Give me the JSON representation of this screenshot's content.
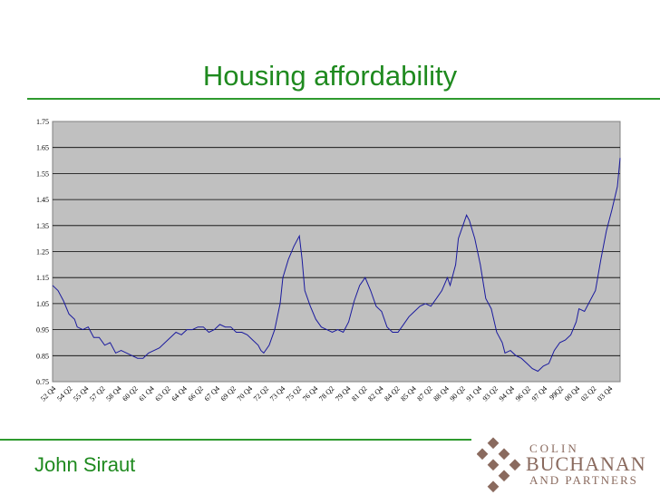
{
  "slide": {
    "title": "Housing affordability",
    "author": "John Siraut",
    "logo": {
      "line1": "COLIN",
      "line2": "BUCHANAN",
      "line3": "AND PARTNERS",
      "color": "#8a6a5e"
    },
    "accent_color": "#1f8a1f"
  },
  "chart_data": {
    "type": "line",
    "title": "",
    "xlabel": "",
    "ylabel": "",
    "ylim": [
      0.75,
      1.75
    ],
    "yticks": [
      0.75,
      0.85,
      0.95,
      1.05,
      1.15,
      1.25,
      1.35,
      1.45,
      1.55,
      1.65,
      1.75
    ],
    "ytick_labels": [
      "0.75",
      "0.85",
      "0.95",
      "1.05",
      "1.15",
      "1.25",
      "1.35",
      "1.45",
      "1.55",
      "1.65",
      "1.75"
    ],
    "grid": true,
    "legend": "none",
    "plot_background": "#c0c0c0",
    "line_color": "#1a1a9e",
    "xtick_labels": [
      "52 Q4",
      "54 Q2",
      "55 Q4",
      "57 Q2",
      "58 Q4",
      "60 Q2",
      "61 Q4",
      "63 Q2",
      "64 Q4",
      "66 Q2",
      "67 Q4",
      "69 Q2",
      "70 Q4",
      "72 Q2",
      "73 Q4",
      "75 Q2",
      "76 Q4",
      "78 Q2",
      "79 Q4",
      "81 Q2",
      "82 Q4",
      "84 Q2",
      "85 Q4",
      "87 Q2",
      "88 Q4",
      "90 Q2",
      "91 Q4",
      "93 Q2",
      "94 Q4",
      "96 Q2",
      "97 Q4",
      "99Q2",
      "00 Q4",
      "02 Q2",
      "03 Q4"
    ],
    "x_start": 1952.75,
    "x_end": 2004.5,
    "series": [
      {
        "points": [
          [
            1952.75,
            1.12
          ],
          [
            1953.25,
            1.1
          ],
          [
            1953.75,
            1.06
          ],
          [
            1954.25,
            1.01
          ],
          [
            1954.75,
            0.99
          ],
          [
            1955.0,
            0.96
          ],
          [
            1955.5,
            0.95
          ],
          [
            1956.0,
            0.96
          ],
          [
            1956.5,
            0.92
          ],
          [
            1957.0,
            0.92
          ],
          [
            1957.5,
            0.89
          ],
          [
            1958.0,
            0.9
          ],
          [
            1958.5,
            0.86
          ],
          [
            1959.0,
            0.87
          ],
          [
            1959.5,
            0.86
          ],
          [
            1960.0,
            0.85
          ],
          [
            1960.5,
            0.84
          ],
          [
            1961.0,
            0.84
          ],
          [
            1961.5,
            0.86
          ],
          [
            1962.0,
            0.87
          ],
          [
            1962.5,
            0.88
          ],
          [
            1963.0,
            0.9
          ],
          [
            1963.5,
            0.92
          ],
          [
            1964.0,
            0.94
          ],
          [
            1964.5,
            0.93
          ],
          [
            1965.0,
            0.95
          ],
          [
            1965.5,
            0.95
          ],
          [
            1966.0,
            0.96
          ],
          [
            1966.5,
            0.96
          ],
          [
            1967.0,
            0.94
          ],
          [
            1967.5,
            0.95
          ],
          [
            1968.0,
            0.97
          ],
          [
            1968.5,
            0.96
          ],
          [
            1969.0,
            0.96
          ],
          [
            1969.5,
            0.94
          ],
          [
            1970.0,
            0.94
          ],
          [
            1970.5,
            0.93
          ],
          [
            1971.0,
            0.91
          ],
          [
            1971.5,
            0.89
          ],
          [
            1971.75,
            0.87
          ],
          [
            1972.0,
            0.86
          ],
          [
            1972.5,
            0.89
          ],
          [
            1973.0,
            0.95
          ],
          [
            1973.5,
            1.05
          ],
          [
            1973.75,
            1.15
          ],
          [
            1974.25,
            1.22
          ],
          [
            1974.75,
            1.27
          ],
          [
            1975.25,
            1.31
          ],
          [
            1975.5,
            1.22
          ],
          [
            1975.75,
            1.1
          ],
          [
            1976.25,
            1.04
          ],
          [
            1976.75,
            0.99
          ],
          [
            1977.25,
            0.96
          ],
          [
            1977.75,
            0.95
          ],
          [
            1978.25,
            0.94
          ],
          [
            1978.75,
            0.95
          ],
          [
            1979.25,
            0.94
          ],
          [
            1979.75,
            0.98
          ],
          [
            1980.25,
            1.06
          ],
          [
            1980.75,
            1.12
          ],
          [
            1981.25,
            1.15
          ],
          [
            1981.75,
            1.1
          ],
          [
            1982.25,
            1.04
          ],
          [
            1982.75,
            1.02
          ],
          [
            1983.25,
            0.96
          ],
          [
            1983.75,
            0.94
          ],
          [
            1984.25,
            0.94
          ],
          [
            1984.75,
            0.97
          ],
          [
            1985.25,
            1.0
          ],
          [
            1985.75,
            1.02
          ],
          [
            1986.25,
            1.04
          ],
          [
            1986.75,
            1.05
          ],
          [
            1987.25,
            1.04
          ],
          [
            1987.75,
            1.07
          ],
          [
            1988.25,
            1.1
          ],
          [
            1988.75,
            1.15
          ],
          [
            1989.0,
            1.12
          ],
          [
            1989.5,
            1.2
          ],
          [
            1989.75,
            1.3
          ],
          [
            1990.25,
            1.36
          ],
          [
            1990.5,
            1.39
          ],
          [
            1990.75,
            1.37
          ],
          [
            1991.25,
            1.3
          ],
          [
            1991.75,
            1.2
          ],
          [
            1992.25,
            1.07
          ],
          [
            1992.75,
            1.03
          ],
          [
            1993.25,
            0.94
          ],
          [
            1993.75,
            0.9
          ],
          [
            1994.0,
            0.86
          ],
          [
            1994.5,
            0.87
          ],
          [
            1995.0,
            0.85
          ],
          [
            1995.5,
            0.84
          ],
          [
            1996.0,
            0.82
          ],
          [
            1996.5,
            0.8
          ],
          [
            1997.0,
            0.79
          ],
          [
            1997.5,
            0.81
          ],
          [
            1998.0,
            0.82
          ],
          [
            1998.5,
            0.87
          ],
          [
            1999.0,
            0.9
          ],
          [
            1999.5,
            0.91
          ],
          [
            2000.0,
            0.93
          ],
          [
            2000.5,
            0.98
          ],
          [
            2000.75,
            1.03
          ],
          [
            2001.25,
            1.02
          ],
          [
            2001.75,
            1.06
          ],
          [
            2002.25,
            1.1
          ],
          [
            2002.75,
            1.22
          ],
          [
            2003.25,
            1.33
          ],
          [
            2003.75,
            1.41
          ],
          [
            2004.25,
            1.5
          ],
          [
            2004.5,
            1.61
          ]
        ]
      }
    ]
  }
}
